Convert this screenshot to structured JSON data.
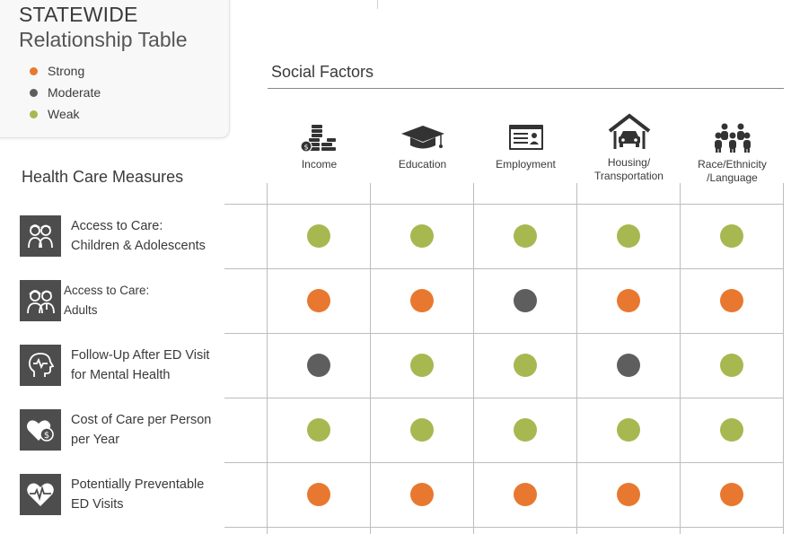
{
  "legend": {
    "title": "STATEWIDE",
    "subtitle": "Relationship Table",
    "items": [
      {
        "label": "Strong",
        "color": "#e8782f"
      },
      {
        "label": "Moderate",
        "color": "#5e5e5e"
      },
      {
        "label": "Weak",
        "color": "#a7b851"
      }
    ]
  },
  "colors": {
    "Strong": "#e8782f",
    "Moderate": "#5e5e5e",
    "Weak": "#a7b851"
  },
  "social_factors": {
    "title": "Social Factors",
    "columns": [
      {
        "label": "Income",
        "icon": "coins-icon"
      },
      {
        "label": "Education",
        "icon": "graduation-cap-icon"
      },
      {
        "label": "Employment",
        "icon": "id-card-icon"
      },
      {
        "label": "Housing/\nTransportation",
        "icon": "house-car-icon"
      },
      {
        "label": "Race/Ethnicity\n/Language",
        "icon": "people-group-icon"
      }
    ]
  },
  "health_care_measures": {
    "title": "Health Care Measures",
    "rows": [
      {
        "label": "Access to Care:\nChildren & Adolescents",
        "icon": "children-icon",
        "values": [
          "Weak",
          "Weak",
          "Weak",
          "Weak",
          "Weak"
        ]
      },
      {
        "label": "Access to Care:\nAdults",
        "icon": "adults-icon",
        "values": [
          "Strong",
          "Strong",
          "Moderate",
          "Strong",
          "Strong"
        ]
      },
      {
        "label": "Follow-Up After ED Visit\nfor Mental Health",
        "icon": "head-heartbeat-icon",
        "values": [
          "Moderate",
          "Weak",
          "Weak",
          "Moderate",
          "Weak"
        ]
      },
      {
        "label": "Cost of Care per Person\nper Year",
        "icon": "heart-dollar-icon",
        "values": [
          "Weak",
          "Weak",
          "Weak",
          "Weak",
          "Weak"
        ]
      },
      {
        "label": "Potentially Preventable\nED Visits",
        "icon": "heart-pulse-icon",
        "values": [
          "Strong",
          "Strong",
          "Strong",
          "Strong",
          "Strong"
        ]
      }
    ]
  }
}
